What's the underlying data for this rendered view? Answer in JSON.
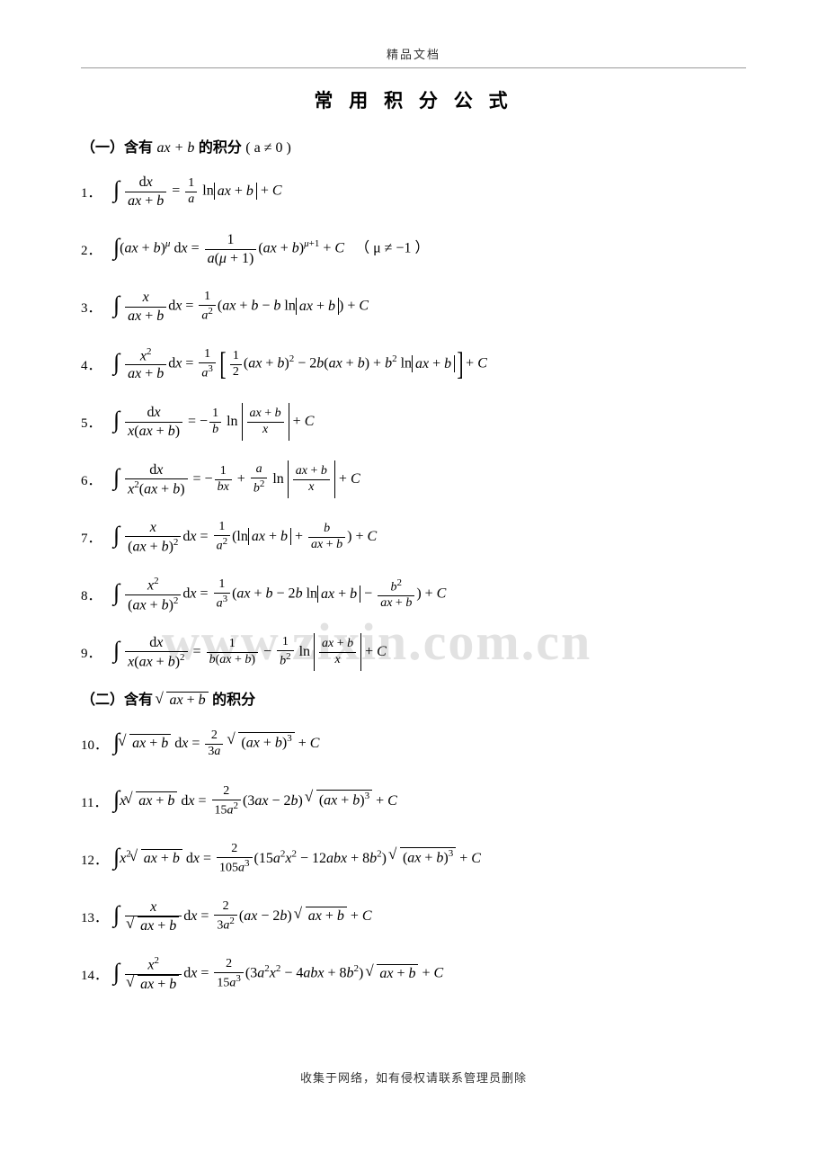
{
  "header": "精品文档",
  "title": "常 用 积 分 公 式",
  "watermark": "www.zixin.com.cn",
  "footer": "收集于网络，如有侵权请联系管理员删除",
  "colors": {
    "text": "#000000",
    "background": "#ffffff",
    "watermark": "#e2e2e2",
    "headerBorder": "#999999",
    "headerText": "#333333"
  },
  "typography": {
    "titleFontSize": 21,
    "bodyFontSize": 16,
    "numFontSize": 15,
    "headerFontSize": 13,
    "watermarkFontSize": 58
  },
  "sections": [
    {
      "label_pre": "（一）含有",
      "label_math": "ax + b",
      "label_post": "的积分",
      "label_cond": "( a ≠ 0 )"
    },
    {
      "label_pre": "（二）含有",
      "label_math": "√(ax + b)",
      "label_post": " 的积分",
      "label_cond": ""
    }
  ],
  "formulas": {
    "s1": [
      {
        "n": "1．",
        "lhs": "∫ dx/(ax+b)",
        "rhs": "= (1/a) ln|ax+b| + C"
      },
      {
        "n": "2．",
        "lhs": "∫ (ax+b)^μ dx",
        "rhs": "= 1/(a(μ+1)) · (ax+b)^(μ+1) + C",
        "cond": "（ μ ≠ −1 ）"
      },
      {
        "n": "3．",
        "lhs": "∫ x/(ax+b) dx",
        "rhs": "= (1/a²)(ax+b − b ln|ax+b|) + C"
      },
      {
        "n": "4．",
        "lhs": "∫ x²/(ax+b) dx",
        "rhs": "= (1/a³)[ ½(ax+b)² − 2b(ax+b) + b² ln|ax+b| ] + C"
      },
      {
        "n": "5．",
        "lhs": "∫ dx/(x(ax+b))",
        "rhs": "= −(1/b) ln|(ax+b)/x| + C"
      },
      {
        "n": "6．",
        "lhs": "∫ dx/(x²(ax+b))",
        "rhs": "= −1/(bx) + (a/b²) ln|(ax+b)/x| + C"
      },
      {
        "n": "7．",
        "lhs": "∫ x/(ax+b)² dx",
        "rhs": "= (1/a²)(ln|ax+b| + b/(ax+b)) + C"
      },
      {
        "n": "8．",
        "lhs": "∫ x²/(ax+b)² dx",
        "rhs": "= (1/a³)(ax+b − 2b ln|ax+b| − b²/(ax+b)) + C"
      },
      {
        "n": "9．",
        "lhs": "∫ dx/(x(ax+b)²)",
        "rhs": "= 1/(b(ax+b)) − (1/b²) ln|(ax+b)/x| + C"
      }
    ],
    "s2": [
      {
        "n": "10．",
        "lhs": "∫ √(ax+b) dx",
        "rhs": "= (2/3a) √((ax+b)³) + C"
      },
      {
        "n": "11．",
        "lhs": "∫ x√(ax+b) dx",
        "rhs": "= (2/15a²)(3ax − 2b)√((ax+b)³) + C"
      },
      {
        "n": "12．",
        "lhs": "∫ x²√(ax+b) dx",
        "rhs": "= (2/105a³)(15a²x² − 12abx + 8b²)√((ax+b)³) + C"
      },
      {
        "n": "13．",
        "lhs": "∫ x/√(ax+b) dx",
        "rhs": "= (2/3a²)(ax − 2b)√(ax+b) + C"
      },
      {
        "n": "14．",
        "lhs": "∫ x²/√(ax+b) dx",
        "rhs": "= (2/15a³)(3a²x² − 4abx + 8b²)√(ax+b) + C"
      }
    ]
  }
}
